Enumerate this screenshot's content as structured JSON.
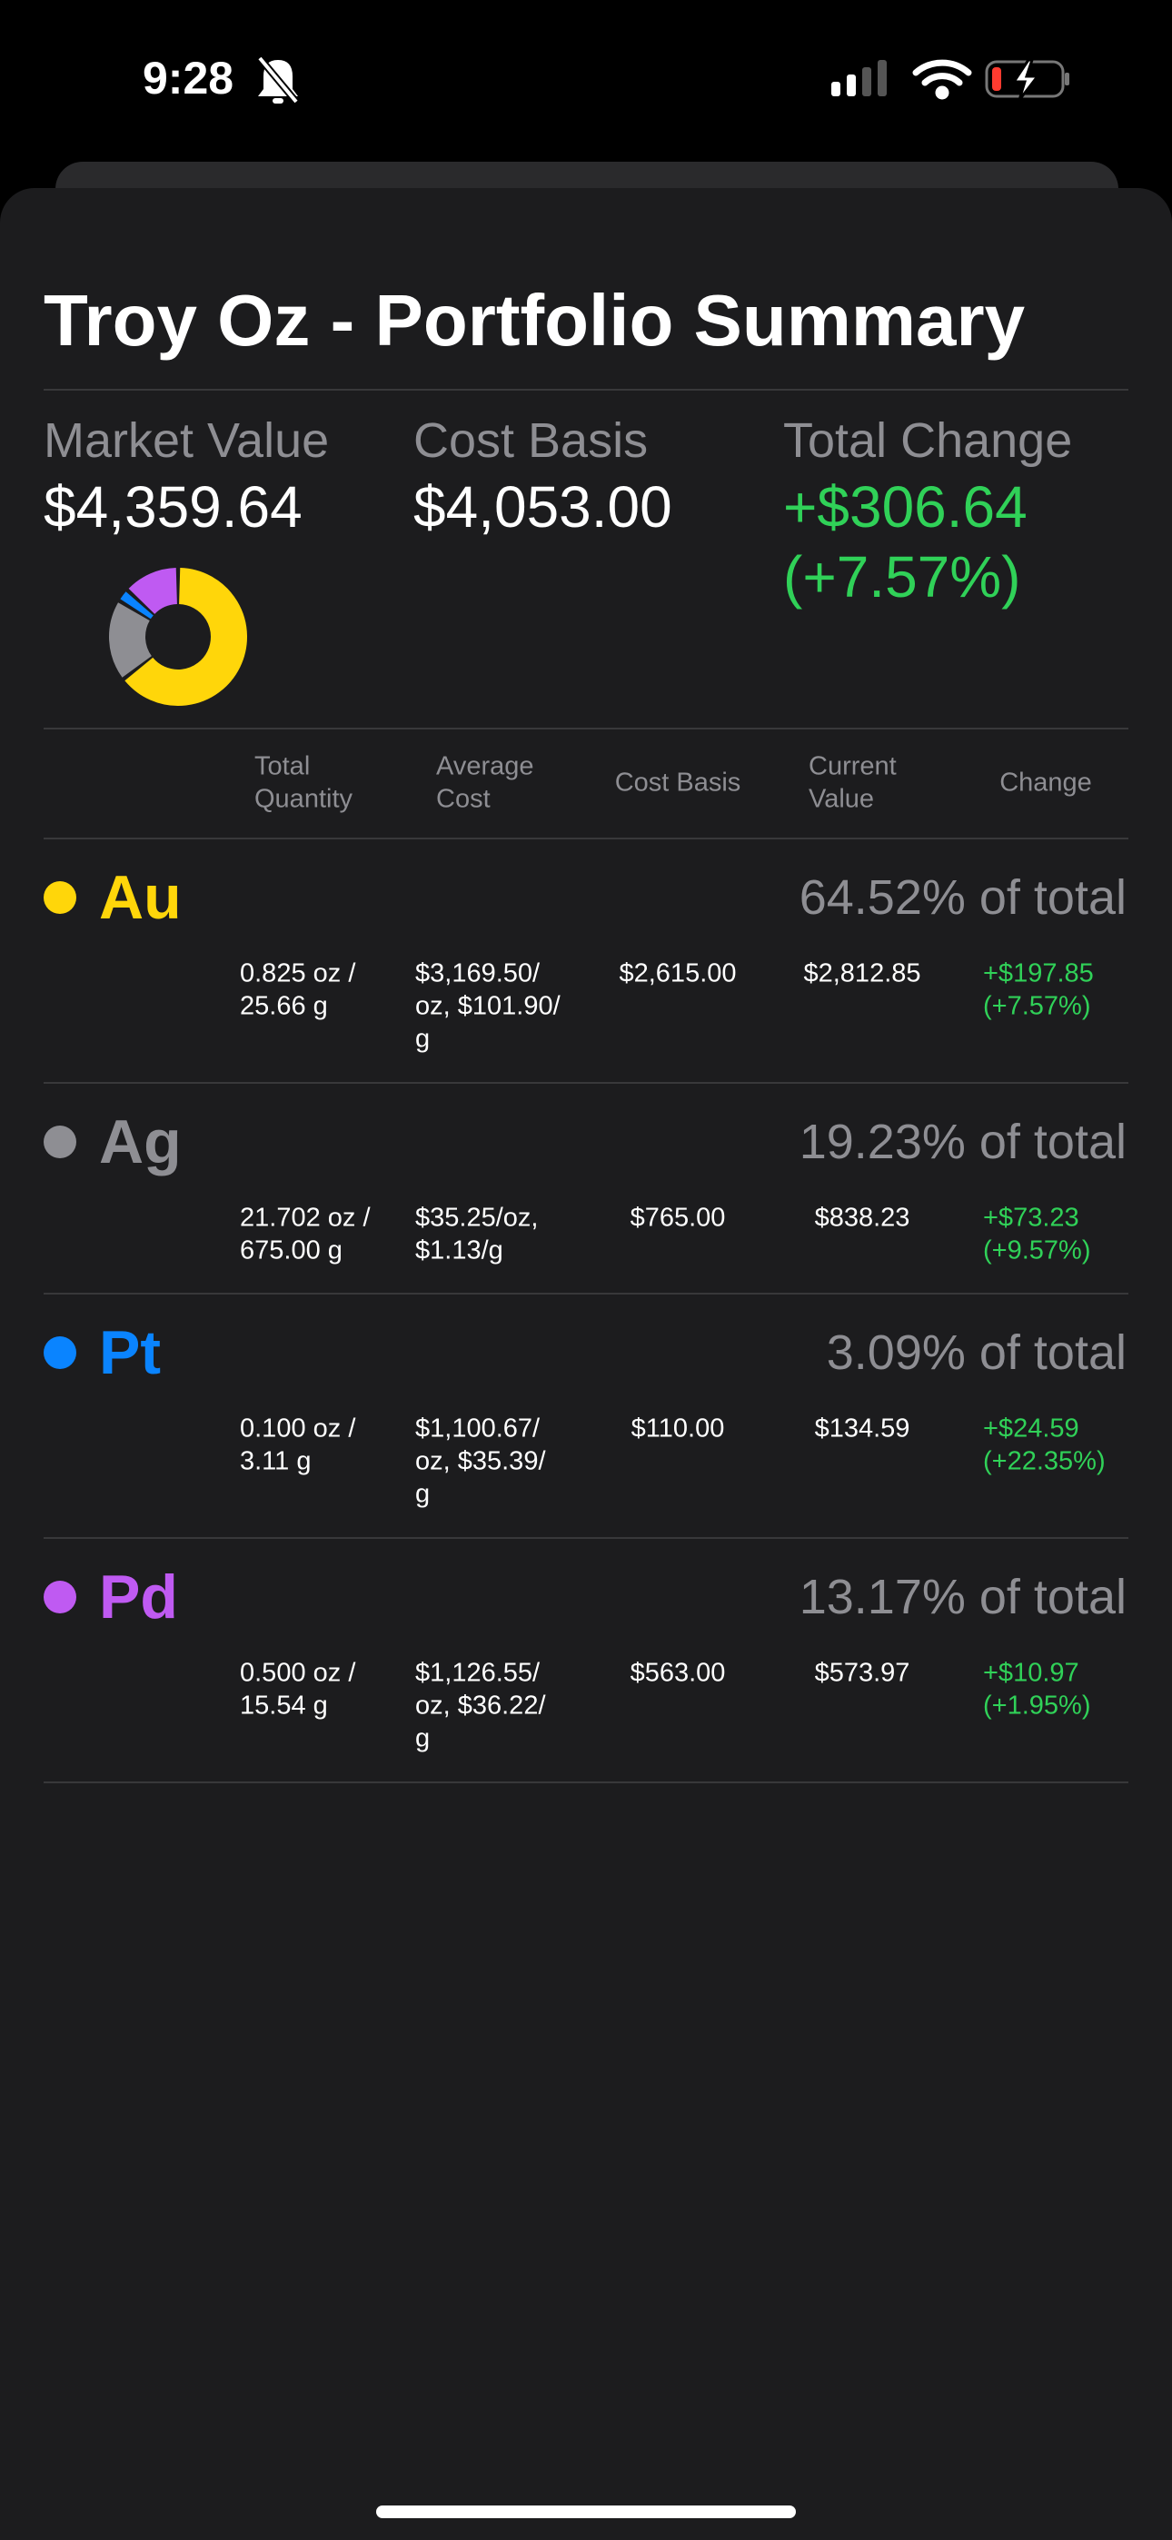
{
  "status_bar": {
    "time": "9:28"
  },
  "header": {
    "title": "Troy Oz - Portfolio Summary"
  },
  "summary": [
    {
      "label": "Market Value",
      "value": [
        "$4,359.64"
      ]
    },
    {
      "label": "Cost Basis",
      "value": [
        "$4,053.00"
      ]
    },
    {
      "label": "Total Change",
      "value": [
        "+$306.64",
        "(+7.57%)"
      ]
    }
  ],
  "chart_data": {
    "type": "pie",
    "values": [
      64.52,
      19.23,
      3.09,
      13.17
    ],
    "colors": [
      "#ffd60a",
      "#8e8e93",
      "#0a84ff",
      "#bf5af2"
    ]
  },
  "table": {
    "headers": [
      [
        "Total",
        "Quantity"
      ],
      [
        "Average",
        "Cost"
      ],
      [
        "Cost Basis"
      ],
      [
        "Current",
        "Value"
      ],
      [
        "Change"
      ]
    ],
    "rows": [
      {
        "symbol": "Au",
        "share": "64.52% of total",
        "quantity": [
          "0.825 oz /",
          "25.66 g"
        ],
        "average_cost": [
          "$3,169.50/",
          "oz, $101.90/",
          "g"
        ],
        "cost_basis": "$2,615.00",
        "current_value": "$2,812.85",
        "change": [
          "+$197.85",
          "(+7.57%)"
        ]
      },
      {
        "symbol": "Ag",
        "share": "19.23% of total",
        "quantity": [
          "21.702 oz /",
          "675.00 g"
        ],
        "average_cost": [
          "$35.25/oz,",
          "$1.13/g"
        ],
        "cost_basis": "$765.00",
        "current_value": "$838.23",
        "change": [
          "+$73.23",
          "(+9.57%)"
        ]
      },
      {
        "symbol": "Pt",
        "share": "3.09% of total",
        "quantity": [
          "0.100 oz /",
          "3.11 g"
        ],
        "average_cost": [
          "$1,100.67/",
          "oz, $35.39/",
          "g"
        ],
        "cost_basis": "$110.00",
        "current_value": "$134.59",
        "change": [
          "+$24.59",
          "(+22.35%)"
        ]
      },
      {
        "symbol": "Pd",
        "share": "13.17% of total",
        "quantity": [
          "0.500 oz /",
          "15.54 g"
        ],
        "average_cost": [
          "$1,126.55/",
          "oz, $36.22/",
          "g"
        ],
        "cost_basis": "$563.00",
        "current_value": "$573.97",
        "change": [
          "+$10.97",
          "(+1.95%)"
        ]
      }
    ]
  }
}
